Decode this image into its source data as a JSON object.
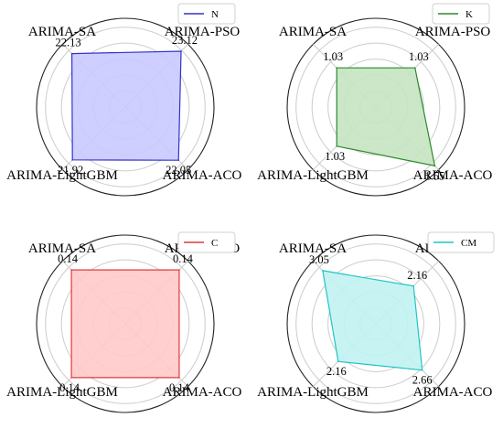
{
  "chart_data": [
    {
      "type": "radar",
      "categories": [
        "ARIMA-SA",
        "ARIMA-PSO",
        "ARIMA-ACO",
        "ARIMA-LightGBM"
      ],
      "series": [
        {
          "name": "N",
          "values": [
            22.13,
            23.12,
            22.05,
            21.92
          ],
          "value_labels": [
            "22.13",
            "23.12",
            "22.05",
            "21.92"
          ]
        }
      ],
      "color": "#3333cc",
      "fill": "#c9c9ff",
      "rmax": 26,
      "grid_rings": 5,
      "legend_position": "top-right"
    },
    {
      "type": "radar",
      "categories": [
        "ARIMA-SA",
        "ARIMA-PSO",
        "ARIMA-ACO",
        "ARIMA-LightGBM"
      ],
      "series": [
        {
          "name": "K",
          "values": [
            1.03,
            1.03,
            1.55,
            1.03
          ],
          "value_labels": [
            "1.03",
            "1.03",
            "1.55",
            "1.03"
          ]
        }
      ],
      "color": "#2a8a2a",
      "fill": "#c7e3c2",
      "rmax": 1.65,
      "grid_rings": 5,
      "legend_position": "top-right"
    },
    {
      "type": "radar",
      "categories": [
        "ARIMA-SA",
        "ARIMA-PSO",
        "ARIMA-ACO",
        "ARIMA-LightGBM"
      ],
      "series": [
        {
          "name": "C",
          "values": [
            0.14,
            0.14,
            0.14,
            0.14
          ],
          "value_labels": [
            "0.14",
            "0.14",
            "0.14",
            "0.14"
          ]
        }
      ],
      "color": "#e03a3a",
      "fill": "#ffc9c9",
      "rmax": 0.163,
      "grid_rings": 5,
      "legend_position": "top-right"
    },
    {
      "type": "radar",
      "categories": [
        "ARIMA-SA",
        "ARIMA-PSO",
        "ARIMA-ACO",
        "ARIMA-LightGBM"
      ],
      "series": [
        {
          "name": "CM",
          "values": [
            3.05,
            2.16,
            2.66,
            2.16
          ],
          "value_labels": [
            "3.05",
            "2.16",
            "2.66",
            "2.16"
          ]
        }
      ],
      "color": "#22c4c4",
      "fill": "#c2f2f2",
      "rmax": 3.6,
      "grid_rings": 5,
      "legend_position": "top-right"
    }
  ]
}
